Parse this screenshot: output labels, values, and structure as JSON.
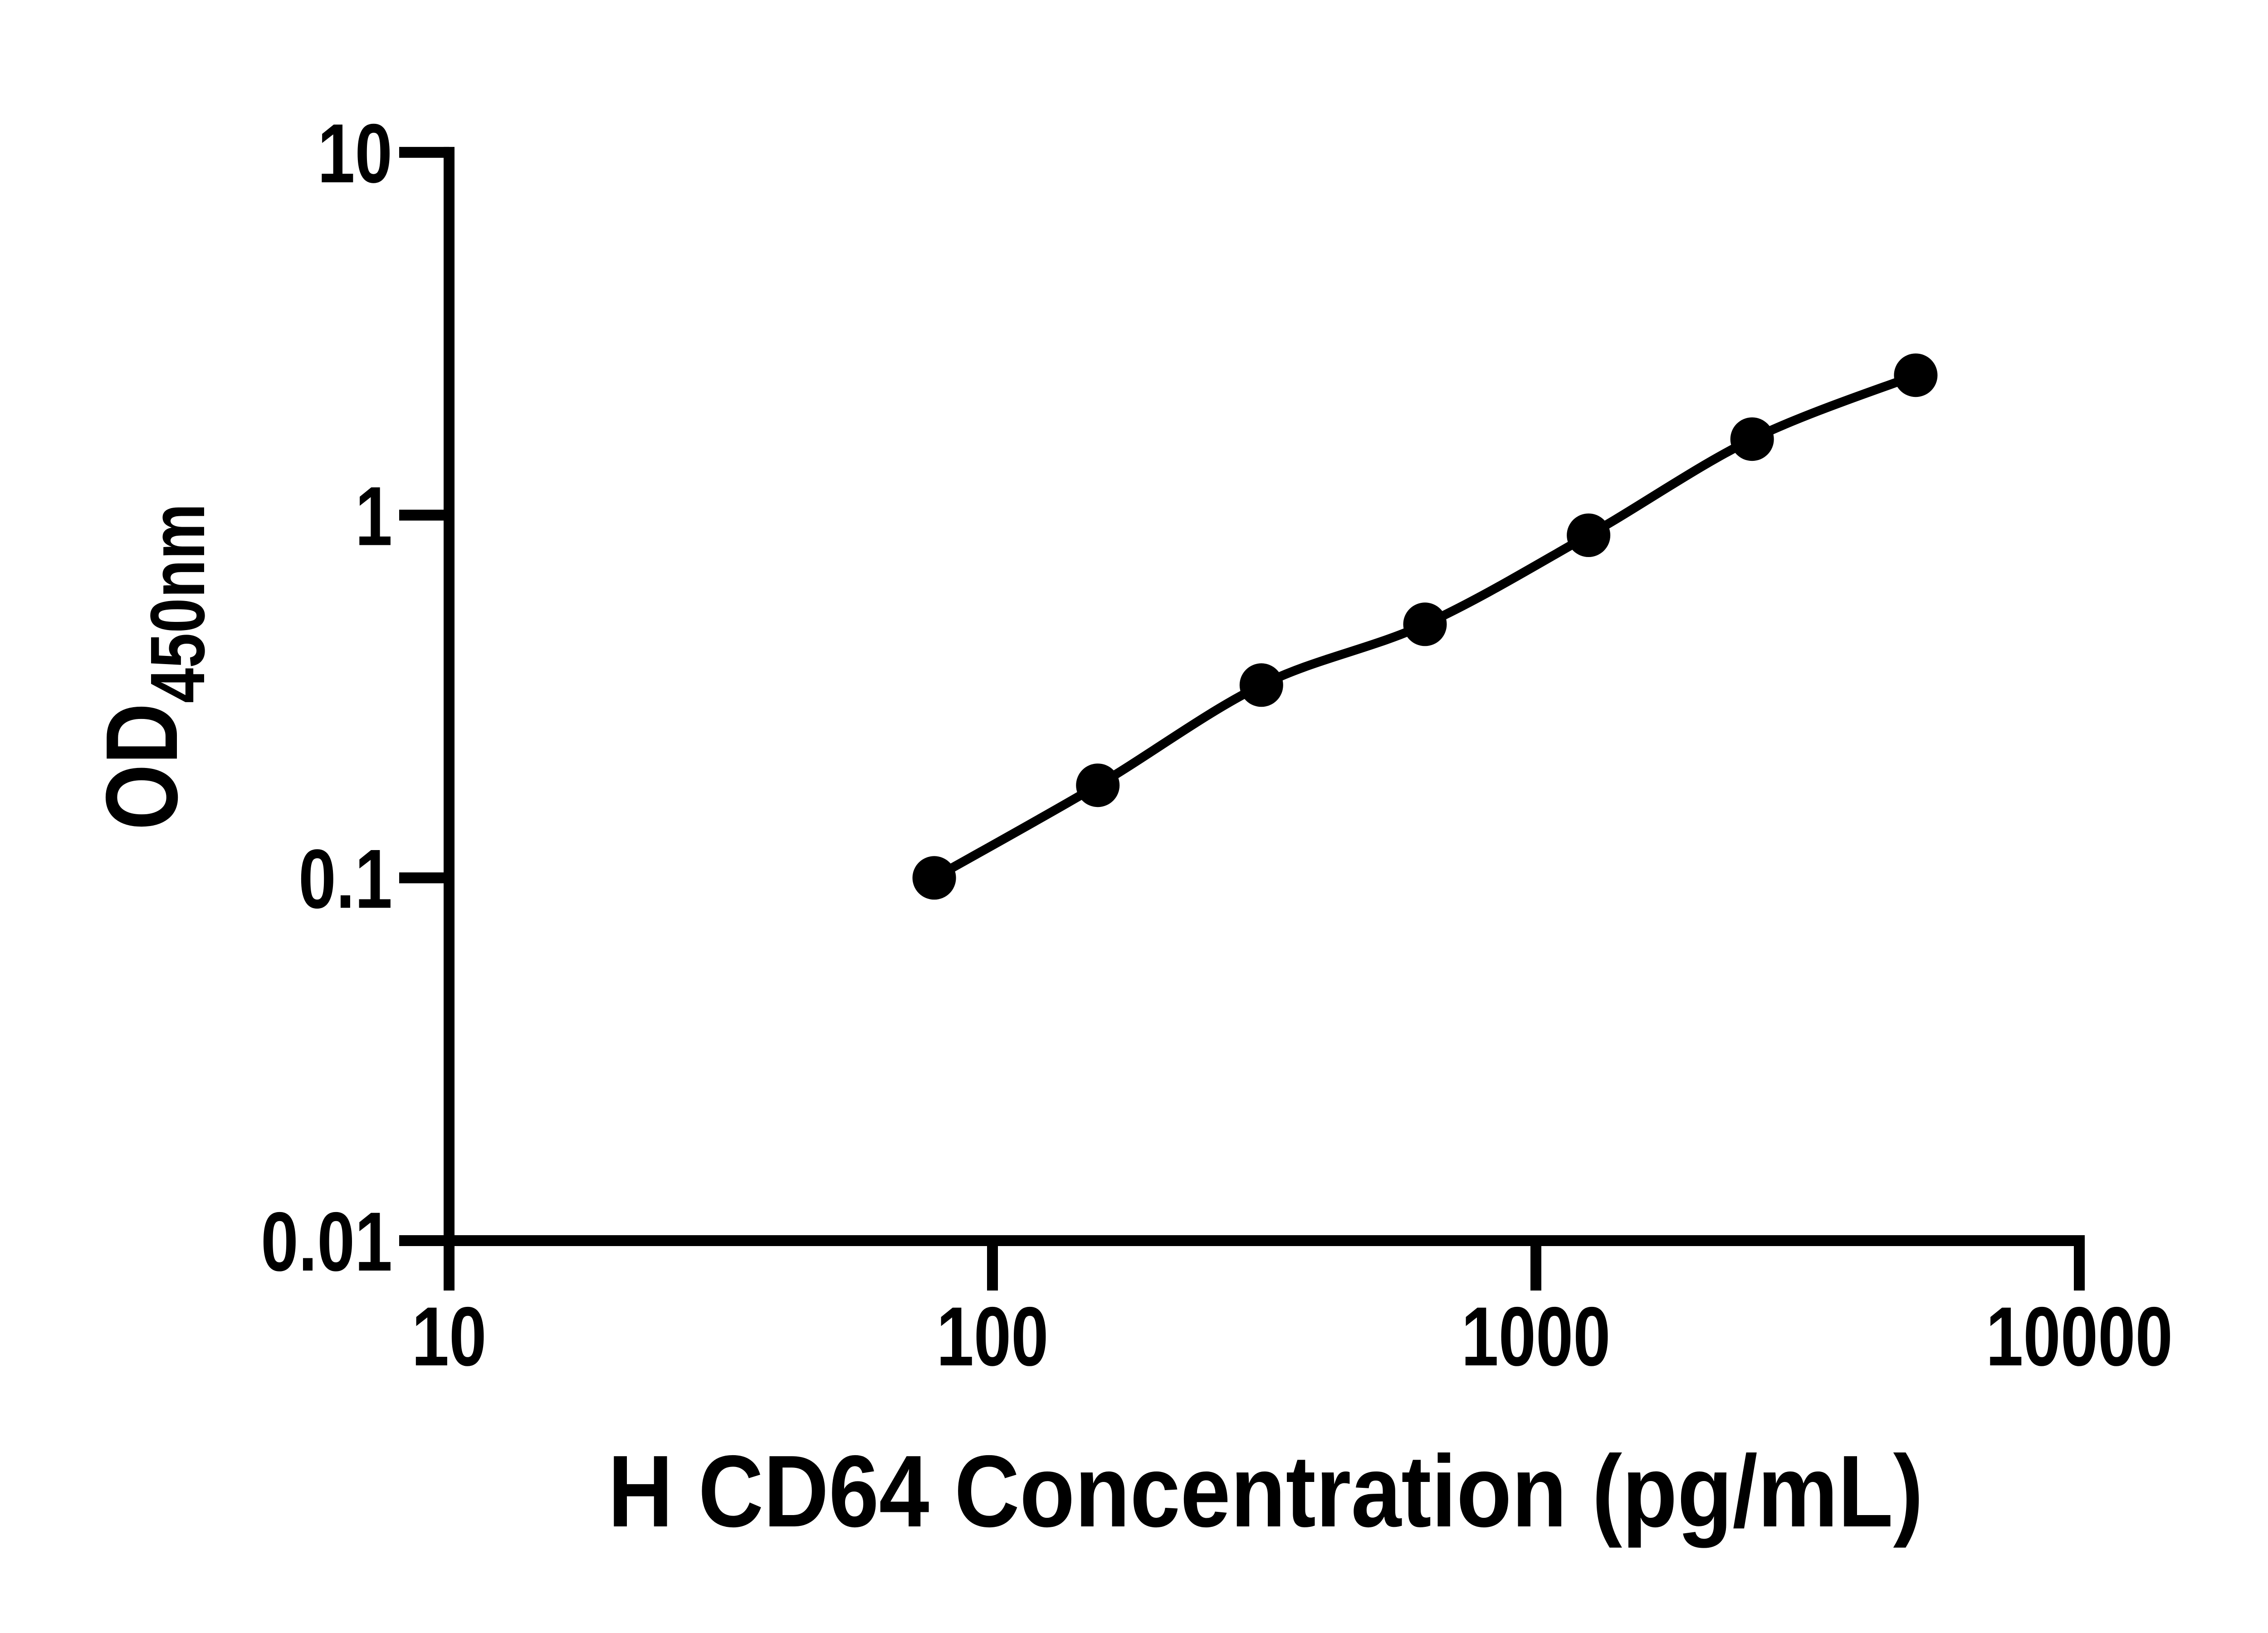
{
  "figure": {
    "background_color": "#ffffff",
    "ink_color": "#000000"
  },
  "chart_data": {
    "type": "scatter",
    "subtype": "standard-curve-with-smooth-fit-line",
    "title": "",
    "xlabel": "H CD64 Concentration (pg/mL)",
    "ylabel_base": "OD",
    "ylabel_subscript": "450nm",
    "log_x": true,
    "log_y": true,
    "xlim": [
      10,
      10000
    ],
    "ylim": [
      0.01,
      10
    ],
    "x_ticks": [
      "10",
      "100",
      "1000",
      "10000"
    ],
    "y_ticks": [
      "0.01",
      "0.1",
      "1",
      "10"
    ],
    "grid": false,
    "legend": false,
    "marker": "filled-circle",
    "marker_color": "#000000",
    "line_color": "#000000",
    "points": {
      "concentration_pg_ml": [
        78.125,
        156.25,
        312.5,
        625,
        1250,
        2500,
        5000
      ],
      "od_450nm": [
        0.1,
        0.18,
        0.34,
        0.5,
        0.88,
        1.62,
        2.43
      ]
    }
  }
}
